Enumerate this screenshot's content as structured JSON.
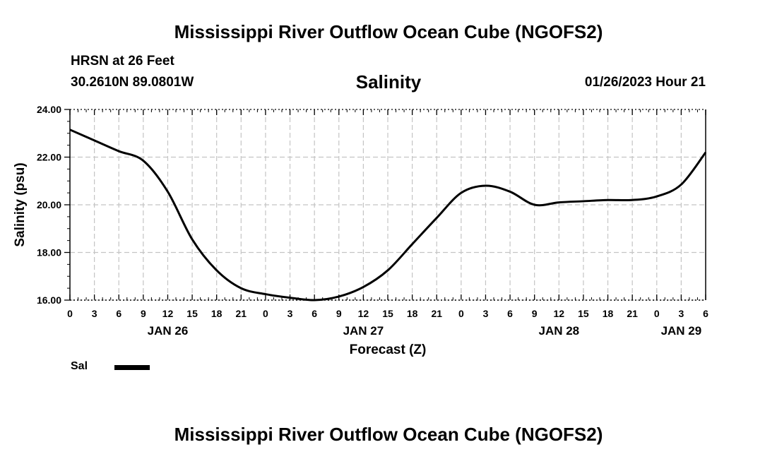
{
  "page": {
    "main_title": "Mississippi River Outflow Ocean Cube (NGOFS2)",
    "footer_title": "Mississippi River Outflow Ocean Cube (NGOFS2)",
    "station": "HRSN at 26 Feet",
    "location": "30.2610N  89.0801W",
    "timestamp": "01/26/2023 Hour 21"
  },
  "chart_data": {
    "type": "line",
    "title": "Salinity",
    "xlabel": "Forecast (Z)",
    "ylabel": "Salinity (psu)",
    "ylim": [
      16,
      24
    ],
    "xlim": [
      0,
      78
    ],
    "x_unit": "hours from JAN 26 00Z",
    "grid": true,
    "yticks": [
      "16.00",
      "18.00",
      "20.00",
      "22.00",
      "24.00"
    ],
    "ytick_values": [
      16,
      18,
      20,
      22,
      24
    ],
    "xticks": [
      "0",
      "3",
      "6",
      "9",
      "12",
      "15",
      "18",
      "21",
      "0",
      "3",
      "6",
      "9",
      "12",
      "15",
      "18",
      "21",
      "0",
      "3",
      "6",
      "9",
      "12",
      "15",
      "18",
      "21",
      "0",
      "3",
      "6"
    ],
    "date_labels": [
      {
        "label": "JAN 26",
        "hour": 12
      },
      {
        "label": "JAN 27",
        "hour": 36
      },
      {
        "label": "JAN 28",
        "hour": 60
      },
      {
        "label": "JAN 29",
        "hour": 75
      }
    ],
    "legend": [
      {
        "label": "Sal",
        "color": "#000000"
      }
    ],
    "series": [
      {
        "name": "Sal",
        "color": "#000000",
        "x": [
          0,
          3,
          6,
          9,
          12,
          15,
          18,
          21,
          24,
          27,
          30,
          33,
          36,
          39,
          42,
          45,
          48,
          51,
          54,
          57,
          60,
          63,
          66,
          69,
          72,
          75,
          78
        ],
        "y": [
          23.15,
          22.7,
          22.25,
          21.85,
          20.55,
          18.55,
          17.25,
          16.5,
          16.25,
          16.1,
          16.0,
          16.15,
          16.55,
          17.25,
          18.35,
          19.45,
          20.5,
          20.8,
          20.55,
          20.0,
          20.1,
          20.15,
          20.2,
          20.2,
          20.35,
          20.85,
          22.2
        ]
      }
    ]
  }
}
